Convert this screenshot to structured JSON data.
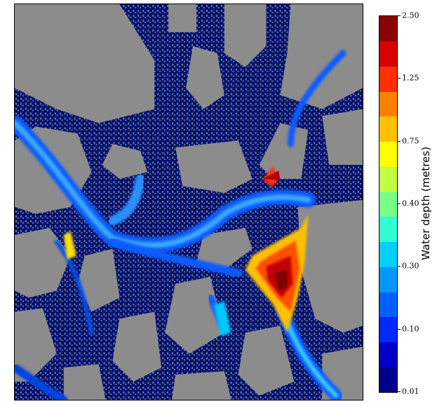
{
  "map": {
    "colors": {
      "building": "#8c8c8c",
      "ground": "#d9d2b8",
      "shallow_water": "#00106e"
    }
  },
  "legend": {
    "title": "Water depth (metres)",
    "ticks": [
      "2.50",
      "1.25",
      "0.75",
      "0.40",
      "0.30",
      "0.10",
      "0.01"
    ],
    "colors": [
      "#00008f",
      "#0000c8",
      "#0028ff",
      "#0060ff",
      "#0098ff",
      "#00d0ff",
      "#30ffd0",
      "#78ff88",
      "#c0ff40",
      "#ffff00",
      "#ffc000",
      "#ff8000",
      "#ff3000",
      "#d80000",
      "#8b0000"
    ]
  }
}
